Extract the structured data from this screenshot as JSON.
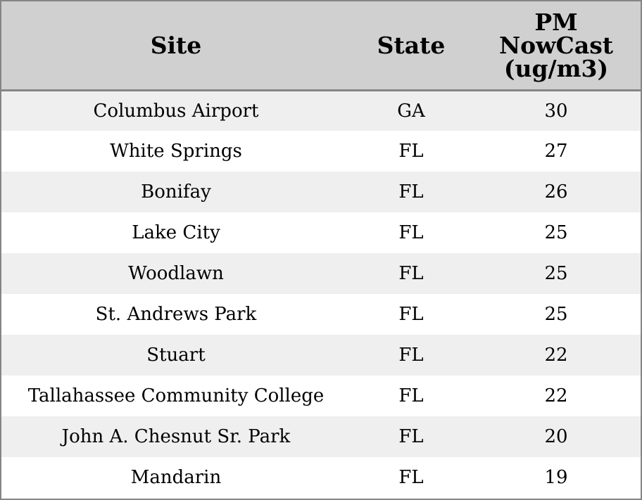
{
  "chart_data": {
    "type": "table",
    "columns": [
      "Site",
      "State",
      "PM NowCast (ug/m3)"
    ],
    "header_lines": {
      "site": [
        "Site"
      ],
      "state": [
        "State"
      ],
      "pm": [
        "PM",
        "NowCast",
        "(ug/m3)"
      ]
    },
    "rows": [
      {
        "site": "Columbus Airport",
        "state": "GA",
        "pm": 30
      },
      {
        "site": "White Springs",
        "state": "FL",
        "pm": 27
      },
      {
        "site": "Bonifay",
        "state": "FL",
        "pm": 26
      },
      {
        "site": "Lake City",
        "state": "FL",
        "pm": 25
      },
      {
        "site": "Woodlawn",
        "state": "FL",
        "pm": 25
      },
      {
        "site": "St. Andrews Park",
        "state": "FL",
        "pm": 25
      },
      {
        "site": "Stuart",
        "state": "FL",
        "pm": 22
      },
      {
        "site": "Tallahassee Community College",
        "state": "FL",
        "pm": 22
      },
      {
        "site": "John A. Chesnut Sr. Park",
        "state": "FL",
        "pm": 20
      },
      {
        "site": "Mandarin",
        "state": "FL",
        "pm": 19
      }
    ]
  },
  "colors": {
    "header_bg": "#d0d0d0",
    "stripe_bg": "#efefef",
    "row_bg": "#ffffff",
    "border": "#858585",
    "text": "#000000"
  }
}
